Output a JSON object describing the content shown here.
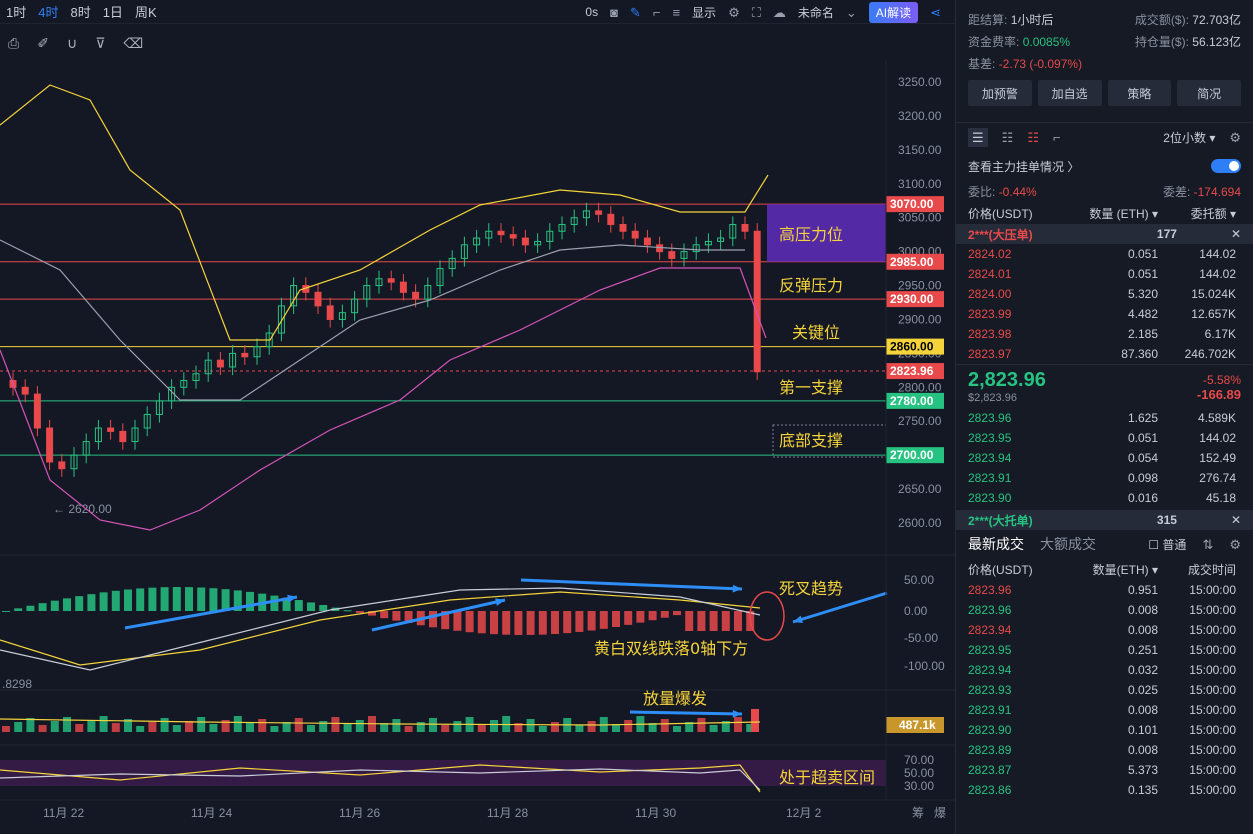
{
  "topbar": {
    "timeframes": [
      "1时",
      "4时",
      "8时",
      "1日",
      "周K"
    ],
    "active_tf": "4时",
    "countdown": "0s",
    "display_label": "显示",
    "name_label": "未命名",
    "ai_label": "AI解读"
  },
  "price_axis": {
    "ticks": [
      "3250.00",
      "3200.00",
      "3150.00",
      "3100.00",
      "3050.00",
      "3000.00",
      "2950.00",
      "2900.00",
      "2850.00",
      "2800.00",
      "2750.00",
      "2650.00",
      "2600.00"
    ]
  },
  "levels": [
    {
      "price": "3070.00",
      "color": "#e8494a",
      "annotation": "高压力位"
    },
    {
      "price": "2985.00",
      "color": "#e8494a",
      "annotation": "反弹压力"
    },
    {
      "price": "2930.00",
      "color": "#e8494a",
      "annotation": "关键位"
    },
    {
      "price": "2860.00",
      "color": "#f5d33a",
      "annotation": ""
    },
    {
      "price": "2823.96",
      "color": "#e8494a",
      "annotation": "第一支撑"
    },
    {
      "price": "2780.00",
      "color": "#26c281",
      "annotation": "底部支撑"
    },
    {
      "price": "2700.00",
      "color": "#26c281",
      "annotation": ""
    }
  ],
  "low_marker": "← 2620.00",
  "macd_axis": [
    "50.00",
    "0.00",
    "-50.00",
    "-100.00"
  ],
  "macd_notes": {
    "cross": "死叉趋势",
    "below": "黄白双线跌落0轴下方"
  },
  "vol": {
    "left_value": ".8298",
    "label": "487.1k",
    "note": "放量爆发"
  },
  "rsi": {
    "ticks": [
      "70.00",
      "50.00",
      "30.00"
    ],
    "note": "处于超卖区间"
  },
  "x_axis": [
    "11月 22",
    "11月 24",
    "11月 26",
    "11月 28",
    "11月 30",
    "12月 2"
  ],
  "bottom_right": [
    "筹",
    "爆"
  ],
  "panel": {
    "stats": [
      {
        "k": "距结算:",
        "v": "1小时后",
        "k2": "成交额($):",
        "v2": "72.703亿"
      },
      {
        "k": "资金费率:",
        "v": "0.0085%",
        "k2": "持仓量($):",
        "v2": "56.123亿"
      },
      {
        "k": "基差:",
        "v": "-2.73 (-0.097%)",
        "k2": "",
        "v2": ""
      }
    ],
    "buttons": [
      "加预警",
      "加自选",
      "策略",
      "简况"
    ],
    "decimals": "2位小数",
    "main_order": "查看主力挂单情况",
    "ratio": {
      "k": "委比:",
      "v": "-0.44%",
      "k2": "委差:",
      "v2": "-174.694"
    },
    "ob_headers": [
      "价格(USDT)",
      "数量 (ETH)",
      "委托额"
    ],
    "ask_banner": {
      "label": "2***(大压单)",
      "qty": "177"
    },
    "asks": [
      [
        "2824.02",
        "0.051",
        "144.02"
      ],
      [
        "2824.01",
        "0.051",
        "144.02"
      ],
      [
        "2824.00",
        "5.320",
        "15.024K"
      ],
      [
        "2823.99",
        "4.482",
        "12.657K"
      ],
      [
        "2823.98",
        "2.185",
        "6.17K"
      ],
      [
        "2823.97",
        "87.360",
        "246.702K"
      ]
    ],
    "last_price": "2,823.96",
    "last_usd": "$2,823.96",
    "change_pct": "-5.58%",
    "change_abs": "-166.89",
    "bids": [
      [
        "2823.96",
        "1.625",
        "4.589K"
      ],
      [
        "2823.95",
        "0.051",
        "144.02"
      ],
      [
        "2823.94",
        "0.054",
        "152.49"
      ],
      [
        "2823.91",
        "0.098",
        "276.74"
      ],
      [
        "2823.90",
        "0.016",
        "45.18"
      ]
    ],
    "bid_banner": {
      "label": "2***(大托单)",
      "qty": "315"
    },
    "trade_tabs": [
      "最新成交",
      "大额成交"
    ],
    "normal_label": "普通",
    "trade_headers": [
      "价格(USDT)",
      "数量(ETH)",
      "成交时间"
    ],
    "trades": [
      [
        "2823.96",
        "0.951",
        "15:00:00",
        "red"
      ],
      [
        "2823.96",
        "0.008",
        "15:00:00",
        "green"
      ],
      [
        "2823.94",
        "0.008",
        "15:00:00",
        "red"
      ],
      [
        "2823.95",
        "0.251",
        "15:00:00",
        "green"
      ],
      [
        "2823.94",
        "0.032",
        "15:00:00",
        "green"
      ],
      [
        "2823.93",
        "0.025",
        "15:00:00",
        "green"
      ],
      [
        "2823.91",
        "0.008",
        "15:00:00",
        "green"
      ],
      [
        "2823.90",
        "0.101",
        "15:00:00",
        "green"
      ],
      [
        "2823.89",
        "0.008",
        "15:00:00",
        "green"
      ],
      [
        "2823.87",
        "5.373",
        "15:00:00",
        "green"
      ],
      [
        "2823.86",
        "0.135",
        "15:00:00",
        "green"
      ]
    ]
  }
}
